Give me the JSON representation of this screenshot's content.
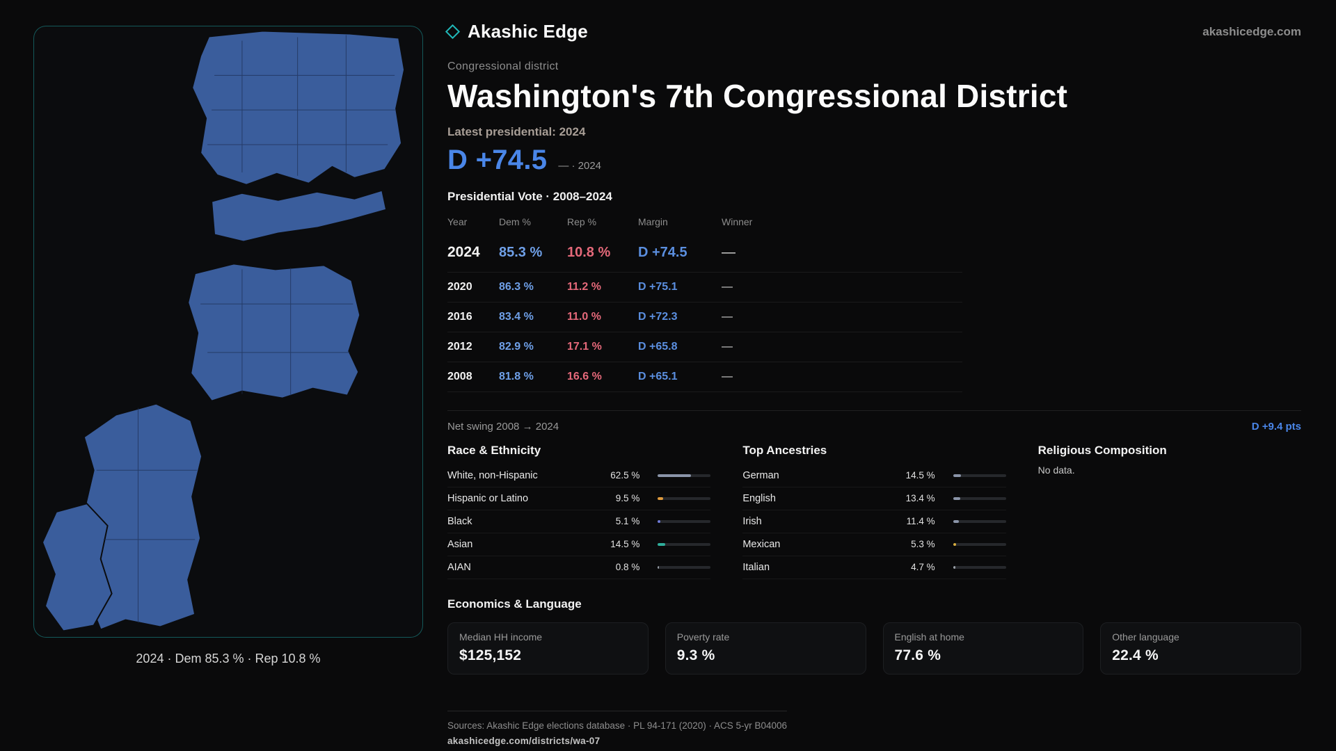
{
  "theme": {
    "bg": "#0a0a0b",
    "accent": "#20b8b8",
    "dem_blue": "#4a86e8",
    "dem_blue_light": "#6fa0e8",
    "rep_red": "#e5697a",
    "map_blue": "#3a5d9c"
  },
  "header": {
    "brand": "Akashic Edge",
    "site": "akashicedge.com",
    "kicker": "Congressional district",
    "title": "Washington's 7th Congressional District",
    "latest_label": "Latest presidential: 2024",
    "headline_margin": "D +74.5",
    "headline_note": "— · 2024"
  },
  "map": {
    "caption": "2024 · Dem 85.3 % · Rep 10.8 %"
  },
  "vote_table": {
    "title": "Presidential Vote · 2008–2024",
    "columns": [
      "Year",
      "Dem %",
      "Rep %",
      "Margin",
      "Winner"
    ],
    "rows": [
      {
        "year": "2024",
        "dem": "85.3 %",
        "rep": "10.8 %",
        "margin": "D +74.5",
        "winner": "—"
      },
      {
        "year": "2020",
        "dem": "86.3 %",
        "rep": "11.2 %",
        "margin": "D +75.1",
        "winner": "—"
      },
      {
        "year": "2016",
        "dem": "83.4 %",
        "rep": "11.0 %",
        "margin": "D +72.3",
        "winner": "—"
      },
      {
        "year": "2012",
        "dem": "82.9 %",
        "rep": "17.1 %",
        "margin": "D +65.8",
        "winner": "—"
      },
      {
        "year": "2008",
        "dem": "81.8 %",
        "rep": "16.6 %",
        "margin": "D +65.1",
        "winner": "—"
      }
    ],
    "net_swing_label": "Net swing 2008 → 2024",
    "net_swing_value": "D +9.4 pts"
  },
  "race": {
    "title": "Race & Ethnicity",
    "rows": [
      {
        "label": "White, non-Hispanic",
        "value": "62.5 %",
        "pct": 62.5,
        "color": "#8a94a8"
      },
      {
        "label": "Hispanic or Latino",
        "value": "9.5 %",
        "pct": 9.5,
        "color": "#e09b3d"
      },
      {
        "label": "Black",
        "value": "5.1 %",
        "pct": 5.1,
        "color": "#6f7bd9"
      },
      {
        "label": "Asian",
        "value": "14.5 %",
        "pct": 14.5,
        "color": "#2fae9b"
      },
      {
        "label": "AIAN",
        "value": "0.8 %",
        "pct": 0.8,
        "color": "#9aa0a8"
      }
    ]
  },
  "ancestries": {
    "title": "Top Ancestries",
    "rows": [
      {
        "label": "German",
        "value": "14.5 %",
        "pct": 14.5,
        "color": "#8a94a8"
      },
      {
        "label": "English",
        "value": "13.4 %",
        "pct": 13.4,
        "color": "#8a94a8"
      },
      {
        "label": "Irish",
        "value": "11.4 %",
        "pct": 11.4,
        "color": "#8a94a8"
      },
      {
        "label": "Mexican",
        "value": "5.3 %",
        "pct": 5.3,
        "color": "#d9ae3f"
      },
      {
        "label": "Italian",
        "value": "4.7 %",
        "pct": 4.7,
        "color": "#9aa0a8"
      }
    ]
  },
  "religion": {
    "title": "Religious Composition",
    "empty": "No data."
  },
  "economics": {
    "title": "Economics & Language",
    "stats": [
      {
        "label": "Median HH income",
        "value": "$125,152"
      },
      {
        "label": "Poverty rate",
        "value": "9.3 %"
      },
      {
        "label": "English at home",
        "value": "77.6 %"
      },
      {
        "label": "Other language",
        "value": "22.4 %"
      }
    ]
  },
  "footer": {
    "sources": "Sources: Akashic Edge elections database · PL 94-171 (2020) · ACS 5-yr B04006",
    "link": "akashicedge.com/districts/wa-07"
  }
}
